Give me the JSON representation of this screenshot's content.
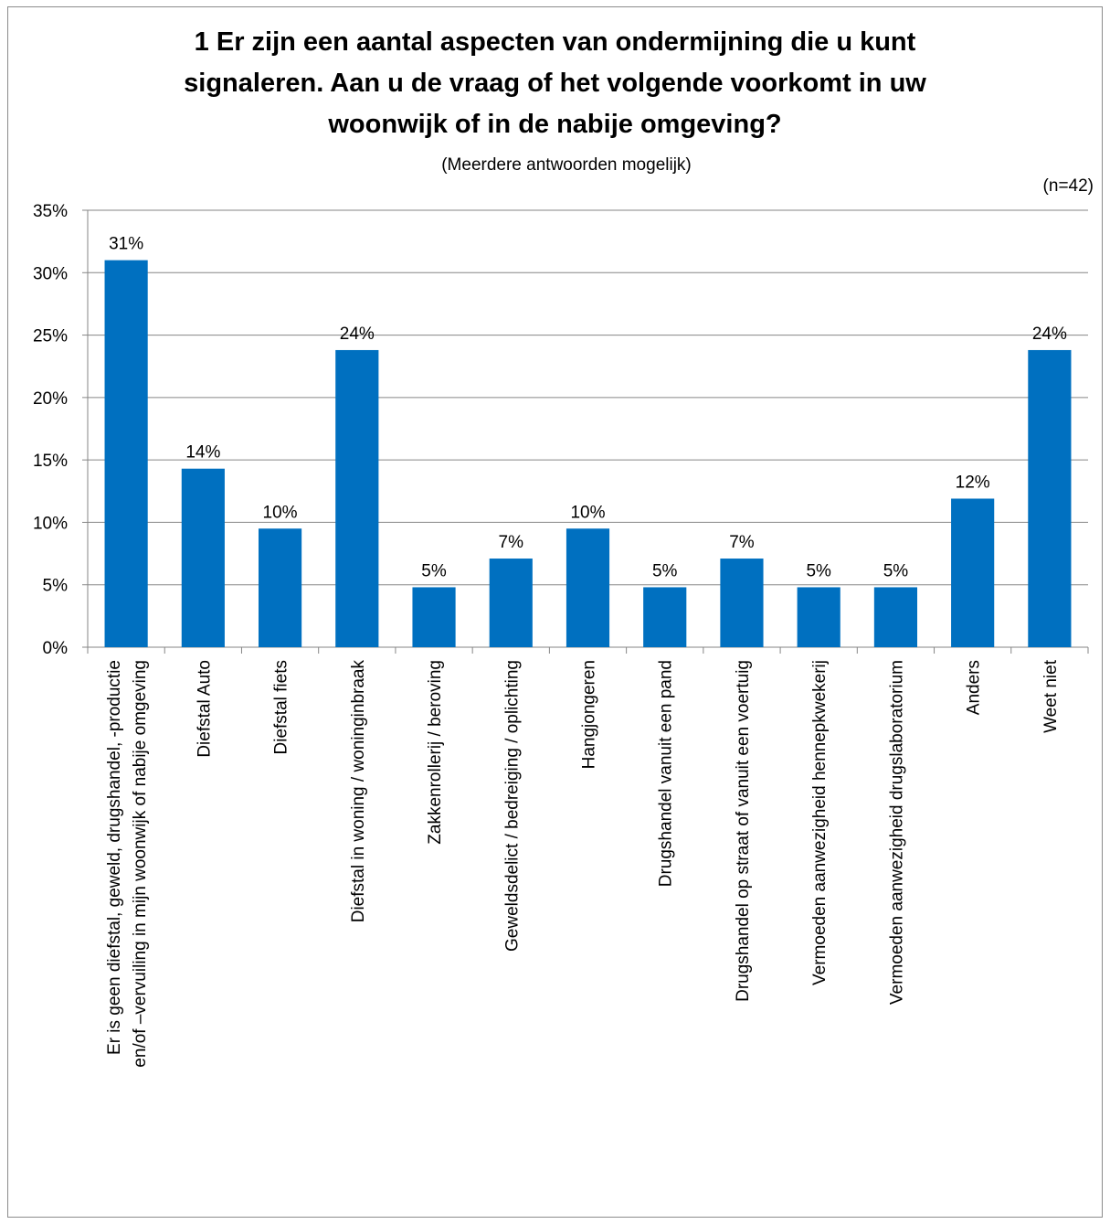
{
  "chart_data": {
    "type": "bar",
    "title": [
      "1 Er zijn een aantal aspecten van ondermijning die u kunt",
      "signaleren. Aan u de vraag of het volgende voorkomt in uw",
      "woonwijk of in de nabije omgeving?"
    ],
    "subtitle": "(Meerdere antwoorden mogelijk)",
    "note": "(n=42)",
    "ylim": [
      0,
      35
    ],
    "yticks": [
      "0%",
      "5%",
      "10%",
      "15%",
      "20%",
      "25%",
      "30%",
      "35%"
    ],
    "grid": true,
    "color": "#0070c0",
    "categories": [
      [
        "Er is geen diefstal, geweld, drugshandel, -productie",
        "en/of –vervuiling in mijn woonwijk of nabije omgeving"
      ],
      [
        "Diefstal Auto"
      ],
      [
        "Diefstal fiets"
      ],
      [
        "Diefstal in woning / woninginbraak"
      ],
      [
        "Zakkenrollerij / beroving"
      ],
      [
        "Geweldsdelict / bedreiging / oplichting"
      ],
      [
        "Hangjongeren"
      ],
      [
        "Drugshandel vanuit een pand"
      ],
      [
        "Drugshandel op straat of vanuit een voertuig"
      ],
      [
        "Vermoeden aanwezigheid hennepkwekerij"
      ],
      [
        "Vermoeden aanwezigheid drugslaboratorium"
      ],
      [
        "Anders"
      ],
      [
        "Weet niet"
      ]
    ],
    "values": [
      31.0,
      14.3,
      9.5,
      23.8,
      4.8,
      7.1,
      9.5,
      4.8,
      7.1,
      4.8,
      4.8,
      11.9,
      23.8
    ],
    "data_labels": [
      "31%",
      "14%",
      "10%",
      "24%",
      "5%",
      "7%",
      "10%",
      "5%",
      "7%",
      "5%",
      "5%",
      "12%",
      "24%"
    ]
  }
}
